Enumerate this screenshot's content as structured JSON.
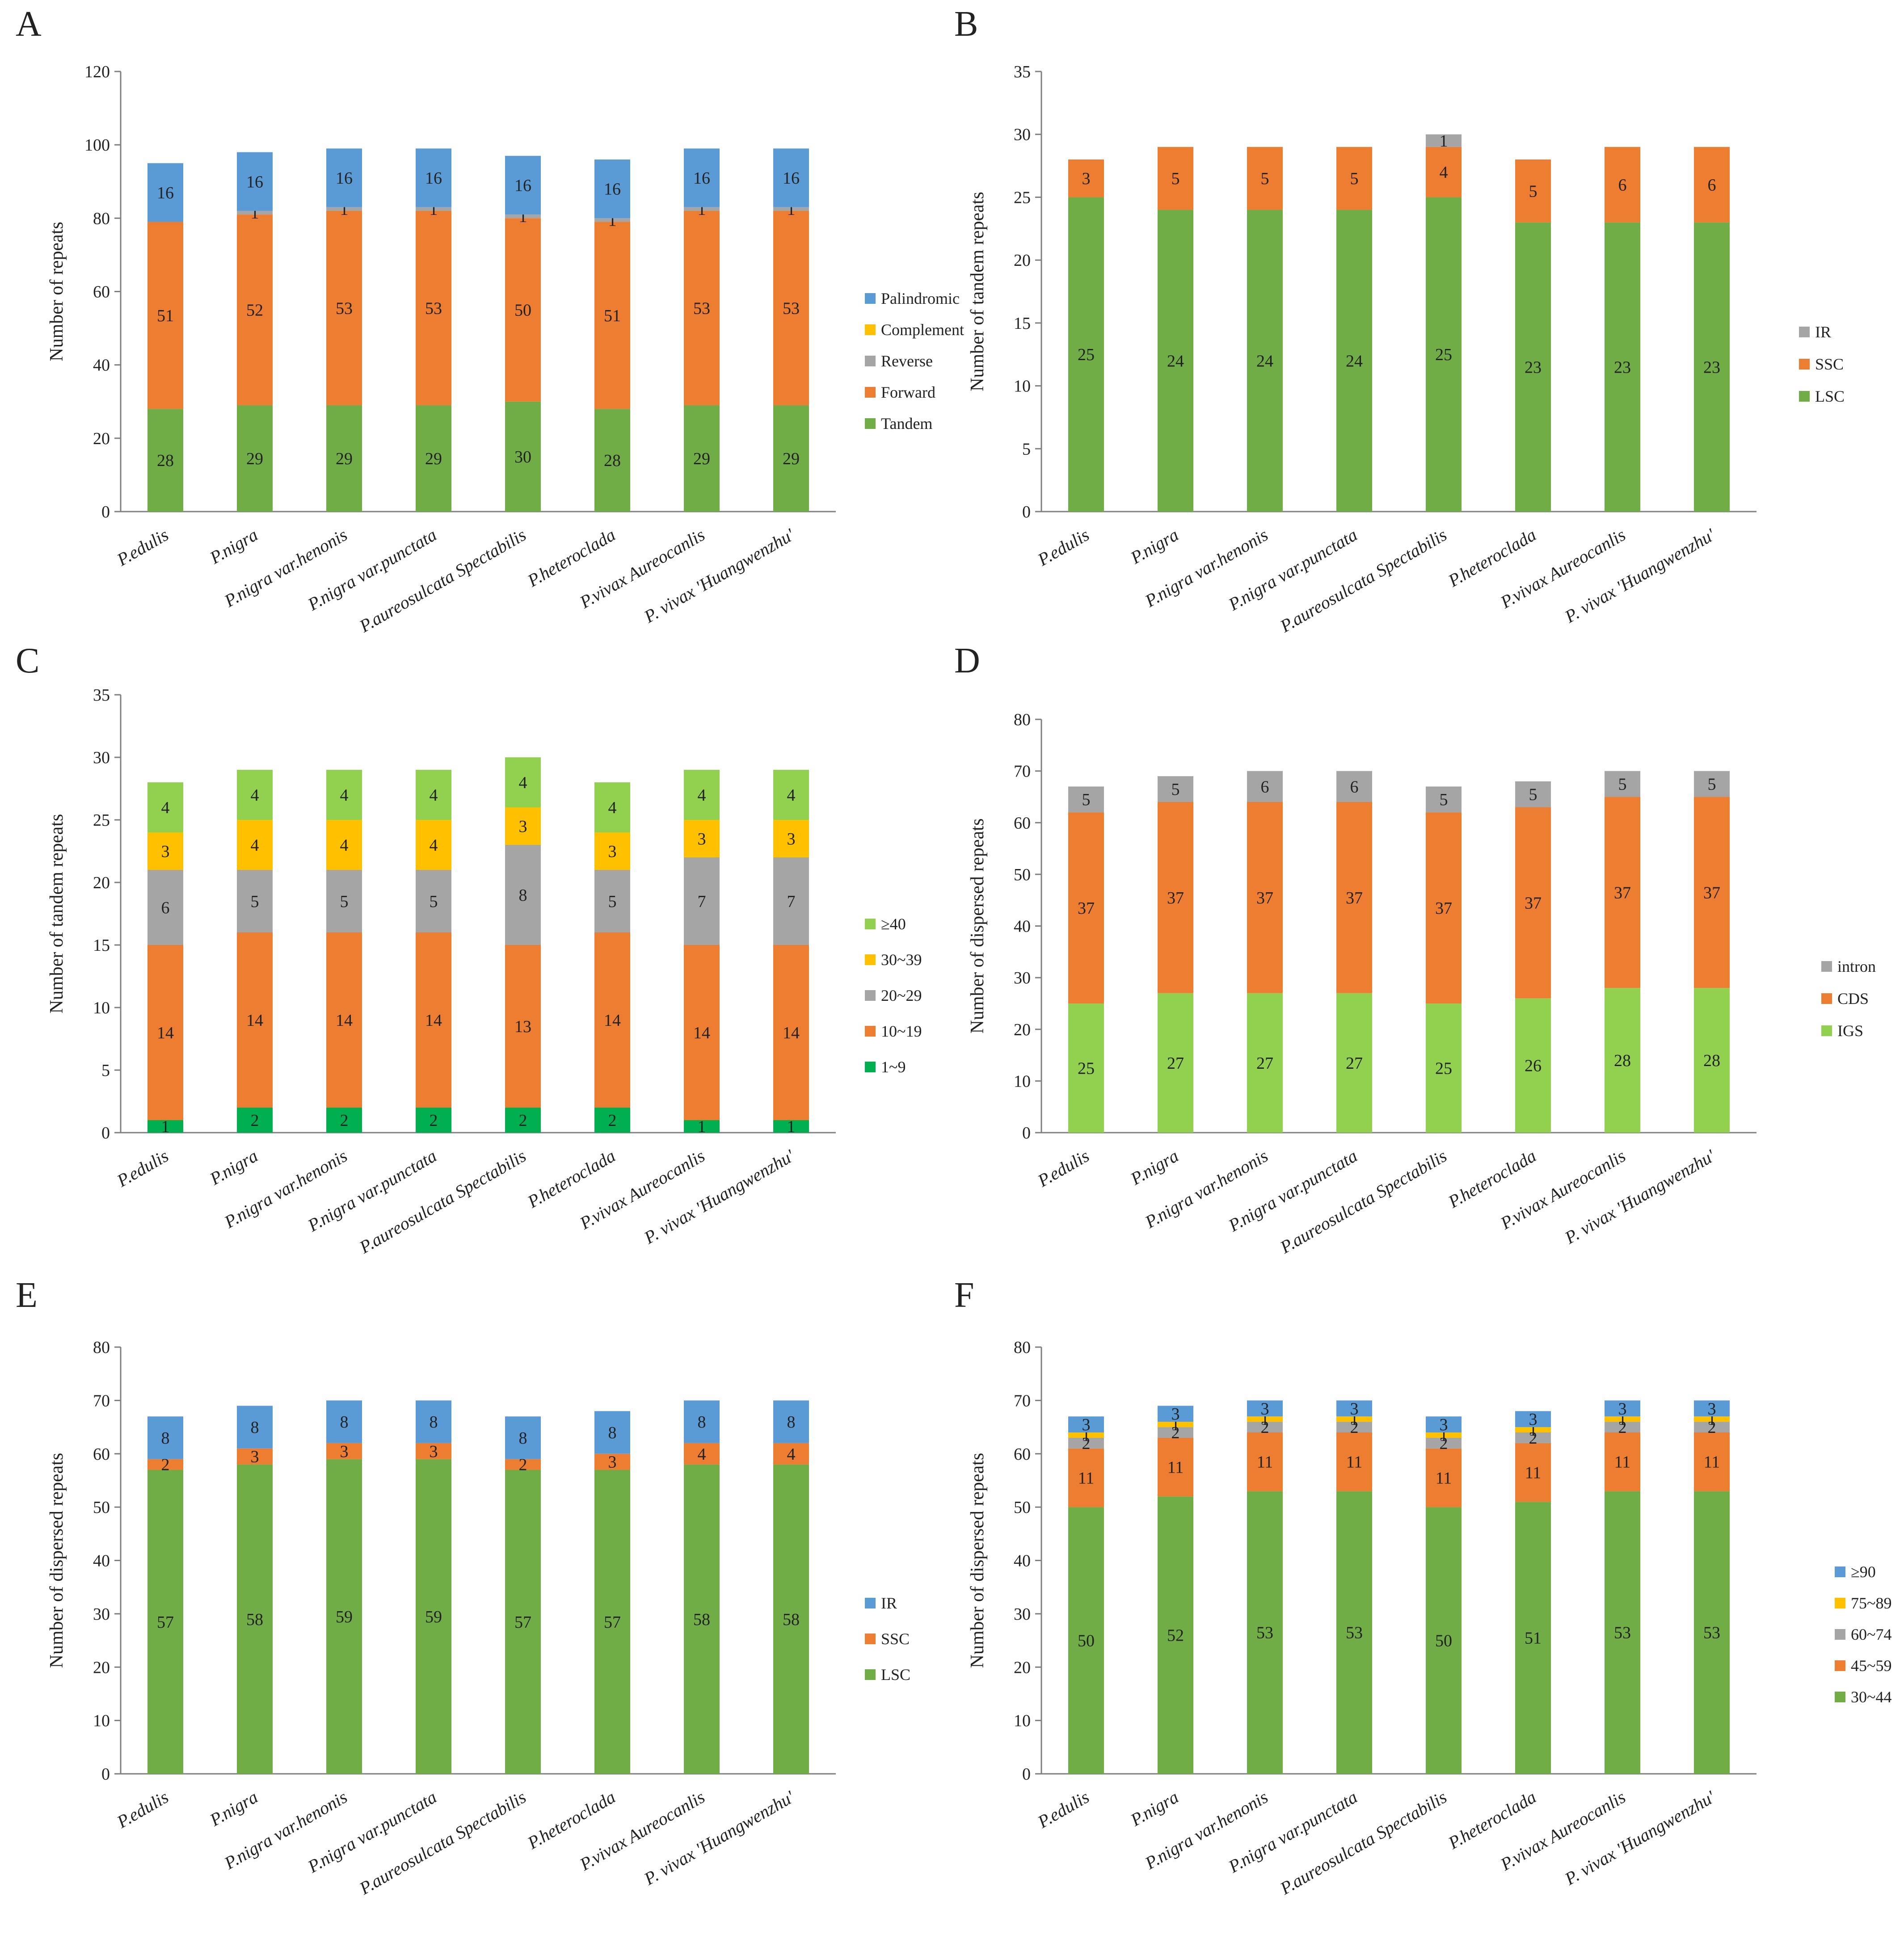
{
  "chart_data": [
    {
      "panel": "A",
      "type": "bar",
      "stacked": true,
      "ylabel": "Number of repeats",
      "ylim": [
        0,
        120
      ],
      "yticks": [
        0,
        20,
        40,
        60,
        80,
        100,
        120
      ],
      "grid": false,
      "legend_position": "right",
      "categories": [
        "P.edulis",
        "P.nigra",
        "P.nigra var.henonis",
        "P.nigra var.punctata",
        "P.aureosulcata Spectabilis",
        "P.heteroclada",
        "P.vivax Aureocanlis",
        "P. vivax 'Huangwenzhu'"
      ],
      "series": [
        {
          "name": "Tandem",
          "color": "#70AD47",
          "values": [
            28,
            29,
            29,
            29,
            30,
            28,
            29,
            29
          ]
        },
        {
          "name": "Forward",
          "color": "#ED7D31",
          "values": [
            51,
            52,
            53,
            53,
            50,
            51,
            53,
            53
          ]
        },
        {
          "name": "Reverse",
          "color": "#A5A5A5",
          "values": [
            0,
            1,
            1,
            1,
            1,
            1,
            1,
            1
          ]
        },
        {
          "name": "Complement",
          "color": "#FFC000",
          "values": [
            0,
            0,
            0,
            0,
            0,
            0,
            0,
            0
          ]
        },
        {
          "name": "Palindromic",
          "color": "#5B9BD5",
          "values": [
            16,
            16,
            16,
            16,
            16,
            16,
            16,
            16
          ]
        }
      ]
    },
    {
      "panel": "B",
      "type": "bar",
      "stacked": true,
      "ylabel": "Number of tandem repeats",
      "ylim": [
        0,
        35
      ],
      "yticks": [
        0,
        5,
        10,
        15,
        20,
        25,
        30,
        35
      ],
      "grid": false,
      "legend_position": "right",
      "categories": [
        "P.edulis",
        "P.nigra",
        "P.nigra var.henonis",
        "P.nigra var.punctata",
        "P.aureosulcata Spectabilis",
        "P.heteroclada",
        "P.vivax Aureocanlis",
        "P. vivax 'Huangwenzhu'"
      ],
      "series": [
        {
          "name": "LSC",
          "color": "#70AD47",
          "values": [
            25,
            24,
            24,
            24,
            25,
            23,
            23,
            23
          ]
        },
        {
          "name": "SSC",
          "color": "#ED7D31",
          "values": [
            3,
            5,
            5,
            5,
            4,
            5,
            6,
            6
          ]
        },
        {
          "name": "IR",
          "color": "#A5A5A5",
          "values": [
            0,
            0,
            0,
            0,
            1,
            0,
            0,
            0
          ]
        }
      ]
    },
    {
      "panel": "C",
      "type": "bar",
      "stacked": true,
      "ylabel": "Number of tandem repeats",
      "ylim": [
        0,
        35
      ],
      "yticks": [
        0,
        5,
        10,
        15,
        20,
        25,
        30,
        35
      ],
      "grid": false,
      "legend_position": "right",
      "categories": [
        "P.edulis",
        "P.nigra",
        "P.nigra var.henonis",
        "P.nigra var.punctata",
        "P.aureosulcata Spectabilis",
        "P.heteroclada",
        "P.vivax Aureocanlis",
        "P. vivax 'Huangwenzhu'"
      ],
      "series": [
        {
          "name": "1~9",
          "color": "#00B050",
          "values": [
            1,
            2,
            2,
            2,
            2,
            2,
            1,
            1
          ]
        },
        {
          "name": "10~19",
          "color": "#ED7D31",
          "values": [
            14,
            14,
            14,
            14,
            13,
            14,
            14,
            14
          ]
        },
        {
          "name": "20~29",
          "color": "#A5A5A5",
          "values": [
            6,
            5,
            5,
            5,
            8,
            5,
            7,
            7
          ]
        },
        {
          "name": "30~39",
          "color": "#FFC000",
          "values": [
            3,
            4,
            4,
            4,
            3,
            3,
            3,
            3
          ]
        },
        {
          "name": "≥40",
          "color": "#92D050",
          "values": [
            4,
            4,
            4,
            4,
            4,
            4,
            4,
            4
          ]
        }
      ]
    },
    {
      "panel": "D",
      "type": "bar",
      "stacked": true,
      "ylabel": "Number of dispersed repeats",
      "ylim": [
        0,
        80
      ],
      "yticks": [
        0,
        10,
        20,
        30,
        40,
        50,
        60,
        70,
        80
      ],
      "grid": false,
      "legend_position": "right",
      "categories": [
        "P.edulis",
        "P.nigra",
        "P.nigra var.henonis",
        "P.nigra var.punctata",
        "P.aureosulcata Spectabilis",
        "P.heteroclada",
        "P.vivax Aureocanlis",
        "P. vivax 'Huangwenzhu'"
      ],
      "series": [
        {
          "name": "IGS",
          "color": "#92D050",
          "values": [
            25,
            27,
            27,
            27,
            25,
            26,
            28,
            28
          ]
        },
        {
          "name": "CDS",
          "color": "#ED7D31",
          "values": [
            37,
            37,
            37,
            37,
            37,
            37,
            37,
            37
          ]
        },
        {
          "name": "intron",
          "color": "#A5A5A5",
          "values": [
            5,
            5,
            6,
            6,
            5,
            5,
            5,
            5
          ]
        }
      ]
    },
    {
      "panel": "E",
      "type": "bar",
      "stacked": true,
      "ylabel": "Number of dispersed repeats",
      "ylim": [
        0,
        80
      ],
      "yticks": [
        0,
        10,
        20,
        30,
        40,
        50,
        60,
        70,
        80
      ],
      "grid": false,
      "legend_position": "right",
      "categories": [
        "P.edulis",
        "P.nigra",
        "P.nigra var.henonis",
        "P.nigra var.punctata",
        "P.aureosulcata Spectabilis",
        "P.heteroclada",
        "P.vivax Aureocanlis",
        "P. vivax 'Huangwenzhu'"
      ],
      "series": [
        {
          "name": "LSC",
          "color": "#70AD47",
          "values": [
            57,
            58,
            59,
            59,
            57,
            57,
            58,
            58
          ]
        },
        {
          "name": "SSC",
          "color": "#ED7D31",
          "values": [
            2,
            3,
            3,
            3,
            2,
            3,
            4,
            4
          ]
        },
        {
          "name": "IR",
          "color": "#5B9BD5",
          "values": [
            8,
            8,
            8,
            8,
            8,
            8,
            8,
            8
          ]
        }
      ]
    },
    {
      "panel": "F",
      "type": "bar",
      "stacked": true,
      "ylabel": "Number of dispersed repeats",
      "ylim": [
        0,
        80
      ],
      "yticks": [
        0,
        10,
        20,
        30,
        40,
        50,
        60,
        70,
        80
      ],
      "grid": false,
      "legend_position": "right",
      "categories": [
        "P.edulis",
        "P.nigra",
        "P.nigra var.henonis",
        "P.nigra var.punctata",
        "P.aureosulcata Spectabilis",
        "P.heteroclada",
        "P.vivax Aureocanlis",
        "P. vivax 'Huangwenzhu'"
      ],
      "series": [
        {
          "name": "30~44",
          "color": "#70AD47",
          "values": [
            50,
            52,
            53,
            53,
            50,
            51,
            53,
            53
          ]
        },
        {
          "name": "45~59",
          "color": "#ED7D31",
          "values": [
            11,
            11,
            11,
            11,
            11,
            11,
            11,
            11
          ]
        },
        {
          "name": "60~74",
          "color": "#A5A5A5",
          "values": [
            2,
            2,
            2,
            2,
            2,
            2,
            2,
            2
          ]
        },
        {
          "name": "75~89",
          "color": "#FFC000",
          "values": [
            1,
            1,
            1,
            1,
            1,
            1,
            1,
            1
          ]
        },
        {
          "name": "≥90",
          "color": "#5B9BD5",
          "values": [
            3,
            3,
            3,
            3,
            3,
            3,
            3,
            3
          ]
        }
      ]
    }
  ]
}
